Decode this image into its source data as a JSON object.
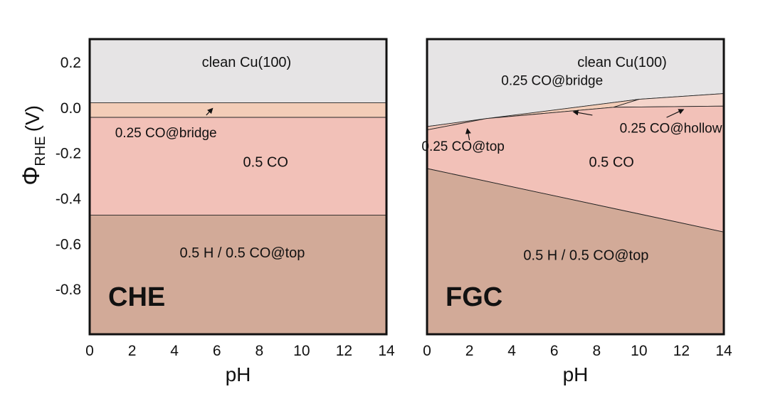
{
  "colors": {
    "clean": "#e6e4e5",
    "co_bridge": "#f3cdb8",
    "co_half": "#f2c1b8",
    "h_co_top": "#d2aa98",
    "co_top": "#f0c5b8",
    "co_hollow": "#f4d4ca",
    "frame": "#111111"
  },
  "chart_data": [
    {
      "type": "area",
      "panel_label": "CHE",
      "xlabel": "pH",
      "ylabel": "Φ",
      "ylabel_sub": "RHE",
      "ylabel_unit": "(V)",
      "xlim": [
        0,
        14
      ],
      "ylim": [
        -1.0,
        0.3
      ],
      "xticks": [
        "0",
        "2",
        "4",
        "6",
        "8",
        "10",
        "12",
        "14"
      ],
      "yticks": [
        "0.2",
        "0.0",
        "-0.2",
        "-0.4",
        "-0.6",
        "-0.8"
      ],
      "regions": [
        {
          "name": "clean Cu(100)",
          "label": "clean Cu(100)",
          "color_key": "clean",
          "upper": [
            [
              0,
              0.3
            ],
            [
              14,
              0.3
            ]
          ],
          "lower": [
            [
              0,
              0.02
            ],
            [
              14,
              0.02
            ]
          ],
          "label_at": [
            7.4,
            0.2
          ]
        },
        {
          "name": "0.25 CO@bridge",
          "label": "",
          "color_key": "co_bridge",
          "upper": [
            [
              0,
              0.02
            ],
            [
              14,
              0.02
            ]
          ],
          "lower": [
            [
              0,
              -0.045
            ],
            [
              14,
              -0.045
            ]
          ]
        },
        {
          "name": "0.5 CO",
          "label": "0.5 CO",
          "color_key": "co_half",
          "upper": [
            [
              0,
              -0.045
            ],
            [
              14,
              -0.045
            ]
          ],
          "lower": [
            [
              0,
              -0.475
            ],
            [
              14,
              -0.475
            ]
          ],
          "label_at": [
            8.3,
            -0.24
          ]
        },
        {
          "name": "0.5 H / 0.5 CO@top",
          "label": "0.5 H / 0.5 CO@top",
          "color_key": "h_co_top",
          "upper": [
            [
              0,
              -0.475
            ],
            [
              14,
              -0.475
            ]
          ],
          "lower": [
            [
              0,
              -1.0
            ],
            [
              14,
              -1.0
            ]
          ],
          "label_at": [
            7.2,
            -0.64
          ]
        }
      ],
      "annotations": [
        {
          "text": "0.25 CO@bridge",
          "text_at": [
            1.2,
            -0.11
          ],
          "arrow_from": [
            5.5,
            -0.035
          ],
          "arrow_to": [
            5.8,
            -0.005
          ]
        }
      ]
    },
    {
      "type": "area",
      "panel_label": "FGC",
      "xlabel": "pH",
      "xlim": [
        0,
        14
      ],
      "ylim": [
        -1.0,
        0.3
      ],
      "xticks": [
        "0",
        "2",
        "4",
        "6",
        "8",
        "10",
        "12",
        "14"
      ],
      "regions": [
        {
          "name": "clean Cu(100)",
          "label": "clean Cu(100)",
          "color_key": "clean",
          "upper": [
            [
              0,
              0.3
            ],
            [
              14,
              0.3
            ]
          ],
          "lower": [
            [
              0,
              -0.085
            ],
            [
              10,
              0.035
            ],
            [
              14,
              0.06
            ]
          ],
          "label_at": [
            9.2,
            0.2
          ]
        },
        {
          "name": "0.25 CO@bridge",
          "label": "0.25 CO@bridge",
          "color_key": "co_bridge",
          "upper": [
            [
              2.8,
              -0.05
            ],
            [
              10,
              0.035
            ]
          ],
          "lower": [
            [
              2.8,
              -0.05
            ],
            [
              8.8,
              0.0
            ],
            [
              10,
              0.035
            ]
          ],
          "label_at": [
            5.9,
            0.12
          ]
        },
        {
          "name": "0.25 CO@top",
          "label": "0.25 CO@top",
          "color_key": "co_top",
          "upper": [
            [
              0,
              -0.085
            ],
            [
              2.8,
              -0.05
            ]
          ],
          "lower": [
            [
              0,
              -0.1
            ],
            [
              2.8,
              -0.05
            ]
          ],
          "label_at": [
            1.7,
            -0.17
          ]
        },
        {
          "name": "0.25 CO@hollow",
          "label": "0.25 CO@hollow",
          "color_key": "co_hollow",
          "upper": [
            [
              8.8,
              0.0
            ],
            [
              10,
              0.035
            ],
            [
              14,
              0.06
            ]
          ],
          "lower": [
            [
              8.8,
              0.0
            ],
            [
              14,
              0.005
            ]
          ],
          "label_at": [
            11.5,
            -0.09
          ]
        },
        {
          "name": "0.5 CO",
          "label": "0.5 CO",
          "color_key": "co_half",
          "upper": [
            [
              0,
              -0.1
            ],
            [
              2.8,
              -0.05
            ],
            [
              8.8,
              0.0
            ],
            [
              14,
              0.005
            ]
          ],
          "lower": [
            [
              0,
              -0.27
            ],
            [
              14,
              -0.55
            ]
          ],
          "label_at": [
            8.7,
            -0.24
          ]
        },
        {
          "name": "0.5 H / 0.5 CO@top",
          "label": "0.5 H / 0.5 CO@top",
          "color_key": "h_co_top",
          "upper": [
            [
              0,
              -0.27
            ],
            [
              14,
              -0.55
            ]
          ],
          "lower": [
            [
              0,
              -1.0
            ],
            [
              14,
              -1.0
            ]
          ],
          "label_at": [
            7.5,
            -0.65
          ]
        }
      ],
      "annotations": [
        {
          "text": "",
          "arrow_from": [
            7.8,
            -0.035
          ],
          "arrow_to": [
            6.9,
            -0.02
          ]
        },
        {
          "text": "",
          "arrow_from": [
            2.0,
            -0.145
          ],
          "arrow_to": [
            1.9,
            -0.095
          ]
        },
        {
          "text": "",
          "arrow_from": [
            11.3,
            -0.045
          ],
          "arrow_to": [
            12.1,
            -0.01
          ]
        }
      ]
    }
  ]
}
